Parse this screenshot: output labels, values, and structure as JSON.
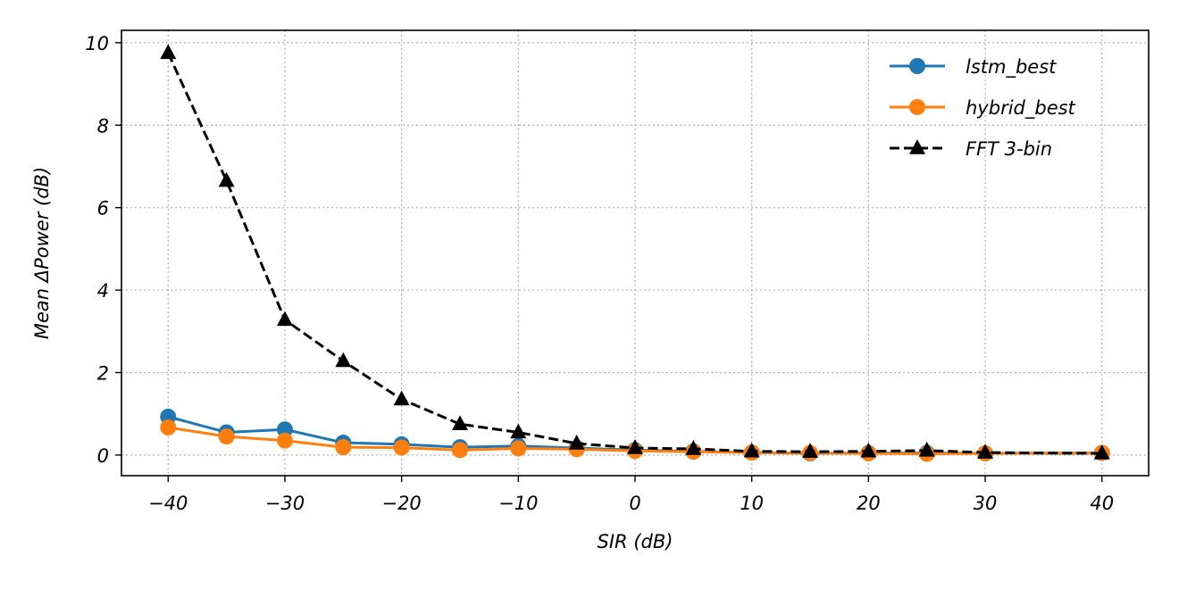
{
  "chart_data": {
    "type": "line",
    "xlabel": "SIR (dB)",
    "ylabel": "Mean ΔPower (dB)",
    "xlim": [
      -44,
      44
    ],
    "ylim": [
      -0.5,
      10.3
    ],
    "xticks": [
      -40,
      -30,
      -20,
      -10,
      0,
      10,
      20,
      30,
      40
    ],
    "xtick_labels": [
      "−40",
      "−30",
      "−20",
      "−10",
      "0",
      "10",
      "20",
      "30",
      "40"
    ],
    "yticks": [
      0,
      2,
      4,
      6,
      8,
      10
    ],
    "ytick_labels": [
      "0",
      "2",
      "4",
      "6",
      "8",
      "10"
    ],
    "grid": true,
    "legend_position": "top-right",
    "x": [
      -40,
      -35,
      -30,
      -25,
      -20,
      -15,
      -10,
      -5,
      0,
      5,
      10,
      15,
      20,
      25,
      30,
      40
    ],
    "series": [
      {
        "name": "lstm_best",
        "color": "#1f77b4",
        "marker": "circle",
        "linestyle": "solid",
        "values": [
          0.93,
          0.55,
          0.62,
          0.3,
          0.26,
          0.19,
          0.22,
          0.17,
          0.12,
          0.09,
          0.06,
          0.04,
          0.05,
          0.05,
          0.04,
          0.05
        ]
      },
      {
        "name": "hybrid_best",
        "color": "#ff7f0e",
        "marker": "circle",
        "linestyle": "solid",
        "values": [
          0.67,
          0.45,
          0.35,
          0.19,
          0.18,
          0.12,
          0.16,
          0.14,
          0.1,
          0.08,
          0.06,
          0.05,
          0.04,
          0.03,
          0.04,
          0.05
        ]
      },
      {
        "name": "FFT 3-bin",
        "color": "#000000",
        "marker": "triangle",
        "linestyle": "dashed",
        "values": [
          9.75,
          6.65,
          3.28,
          2.28,
          1.35,
          0.75,
          0.55,
          0.28,
          0.17,
          0.15,
          0.09,
          0.08,
          0.09,
          0.11,
          0.06,
          0.04
        ]
      }
    ]
  }
}
